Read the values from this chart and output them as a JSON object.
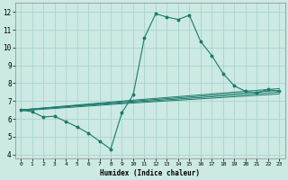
{
  "title": "",
  "xlabel": "Humidex (Indice chaleur)",
  "ylabel": "",
  "bg_color": "#cce9e4",
  "grid_color": "#aad4cc",
  "line_color": "#1a7a6a",
  "xlim": [
    -0.5,
    23.5
  ],
  "ylim": [
    3.8,
    12.5
  ],
  "xticks": [
    0,
    1,
    2,
    3,
    4,
    5,
    6,
    7,
    8,
    9,
    10,
    11,
    12,
    13,
    14,
    15,
    16,
    17,
    18,
    19,
    20,
    21,
    22,
    23
  ],
  "yticks": [
    4,
    5,
    6,
    7,
    8,
    9,
    10,
    11,
    12
  ],
  "main_line": {
    "x": [
      0,
      1,
      2,
      3,
      4,
      5,
      6,
      7,
      8,
      9,
      10,
      11,
      12,
      13,
      14,
      15,
      16,
      17,
      18,
      19,
      20,
      21,
      22,
      23
    ],
    "y": [
      6.5,
      6.4,
      6.1,
      6.15,
      5.85,
      5.55,
      5.2,
      4.75,
      4.3,
      6.35,
      7.35,
      10.55,
      11.9,
      11.72,
      11.58,
      11.82,
      10.35,
      9.55,
      8.55,
      7.85,
      7.55,
      7.45,
      7.65,
      7.55
    ]
  },
  "flat_lines": [
    {
      "x": [
        0,
        9,
        23
      ],
      "y": [
        6.5,
        7.0,
        7.7
      ]
    },
    {
      "x": [
        0,
        9,
        23
      ],
      "y": [
        6.5,
        6.95,
        7.6
      ]
    },
    {
      "x": [
        0,
        9,
        23
      ],
      "y": [
        6.5,
        6.9,
        7.5
      ]
    },
    {
      "x": [
        0,
        9,
        23
      ],
      "y": [
        6.45,
        6.85,
        7.4
      ]
    }
  ]
}
